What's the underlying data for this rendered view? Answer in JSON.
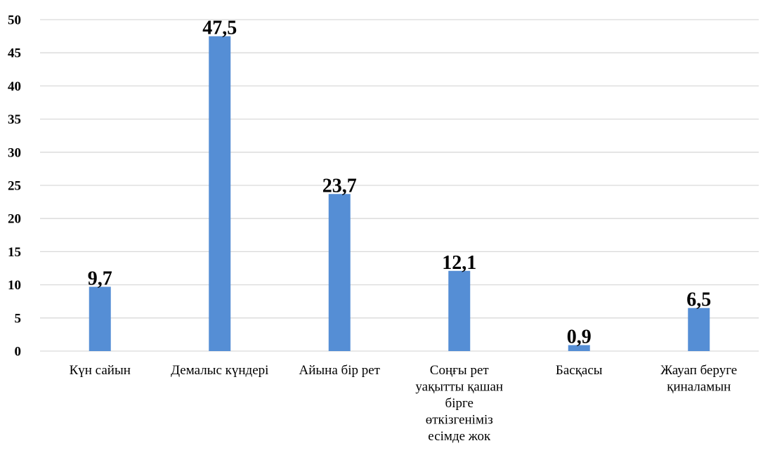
{
  "chart_data": {
    "type": "bar",
    "title": "",
    "xlabel": "",
    "ylabel": "",
    "categories": [
      "Күн сайын",
      "Демалыс күндері",
      "Айына бір рет",
      "Соңғы рет уақытты қашан бірге өткізгеніміз есімде жок",
      "Басқасы",
      "Жауап беруге қиналамын"
    ],
    "category_lines": [
      [
        "Күн сайын"
      ],
      [
        "Демалыс күндері"
      ],
      [
        "Айына бір рет"
      ],
      [
        "Соңғы рет",
        "уақытты қашан",
        "бірге",
        "өткізгеніміз",
        "есімде жок"
      ],
      [
        "Басқасы"
      ],
      [
        "Жауап беруге",
        "қиналамын"
      ]
    ],
    "values": [
      9.7,
      47.5,
      23.7,
      12.1,
      0.9,
      6.5
    ],
    "data_labels": [
      "9,7",
      "47,5",
      "23,7",
      "12,1",
      "0,9",
      "6,5"
    ],
    "ylim": [
      0,
      50
    ],
    "yticks": [
      0,
      5,
      10,
      15,
      20,
      25,
      30,
      35,
      40,
      45,
      50
    ],
    "grid": true,
    "legend": "none",
    "bar_color": "#558ed5"
  }
}
